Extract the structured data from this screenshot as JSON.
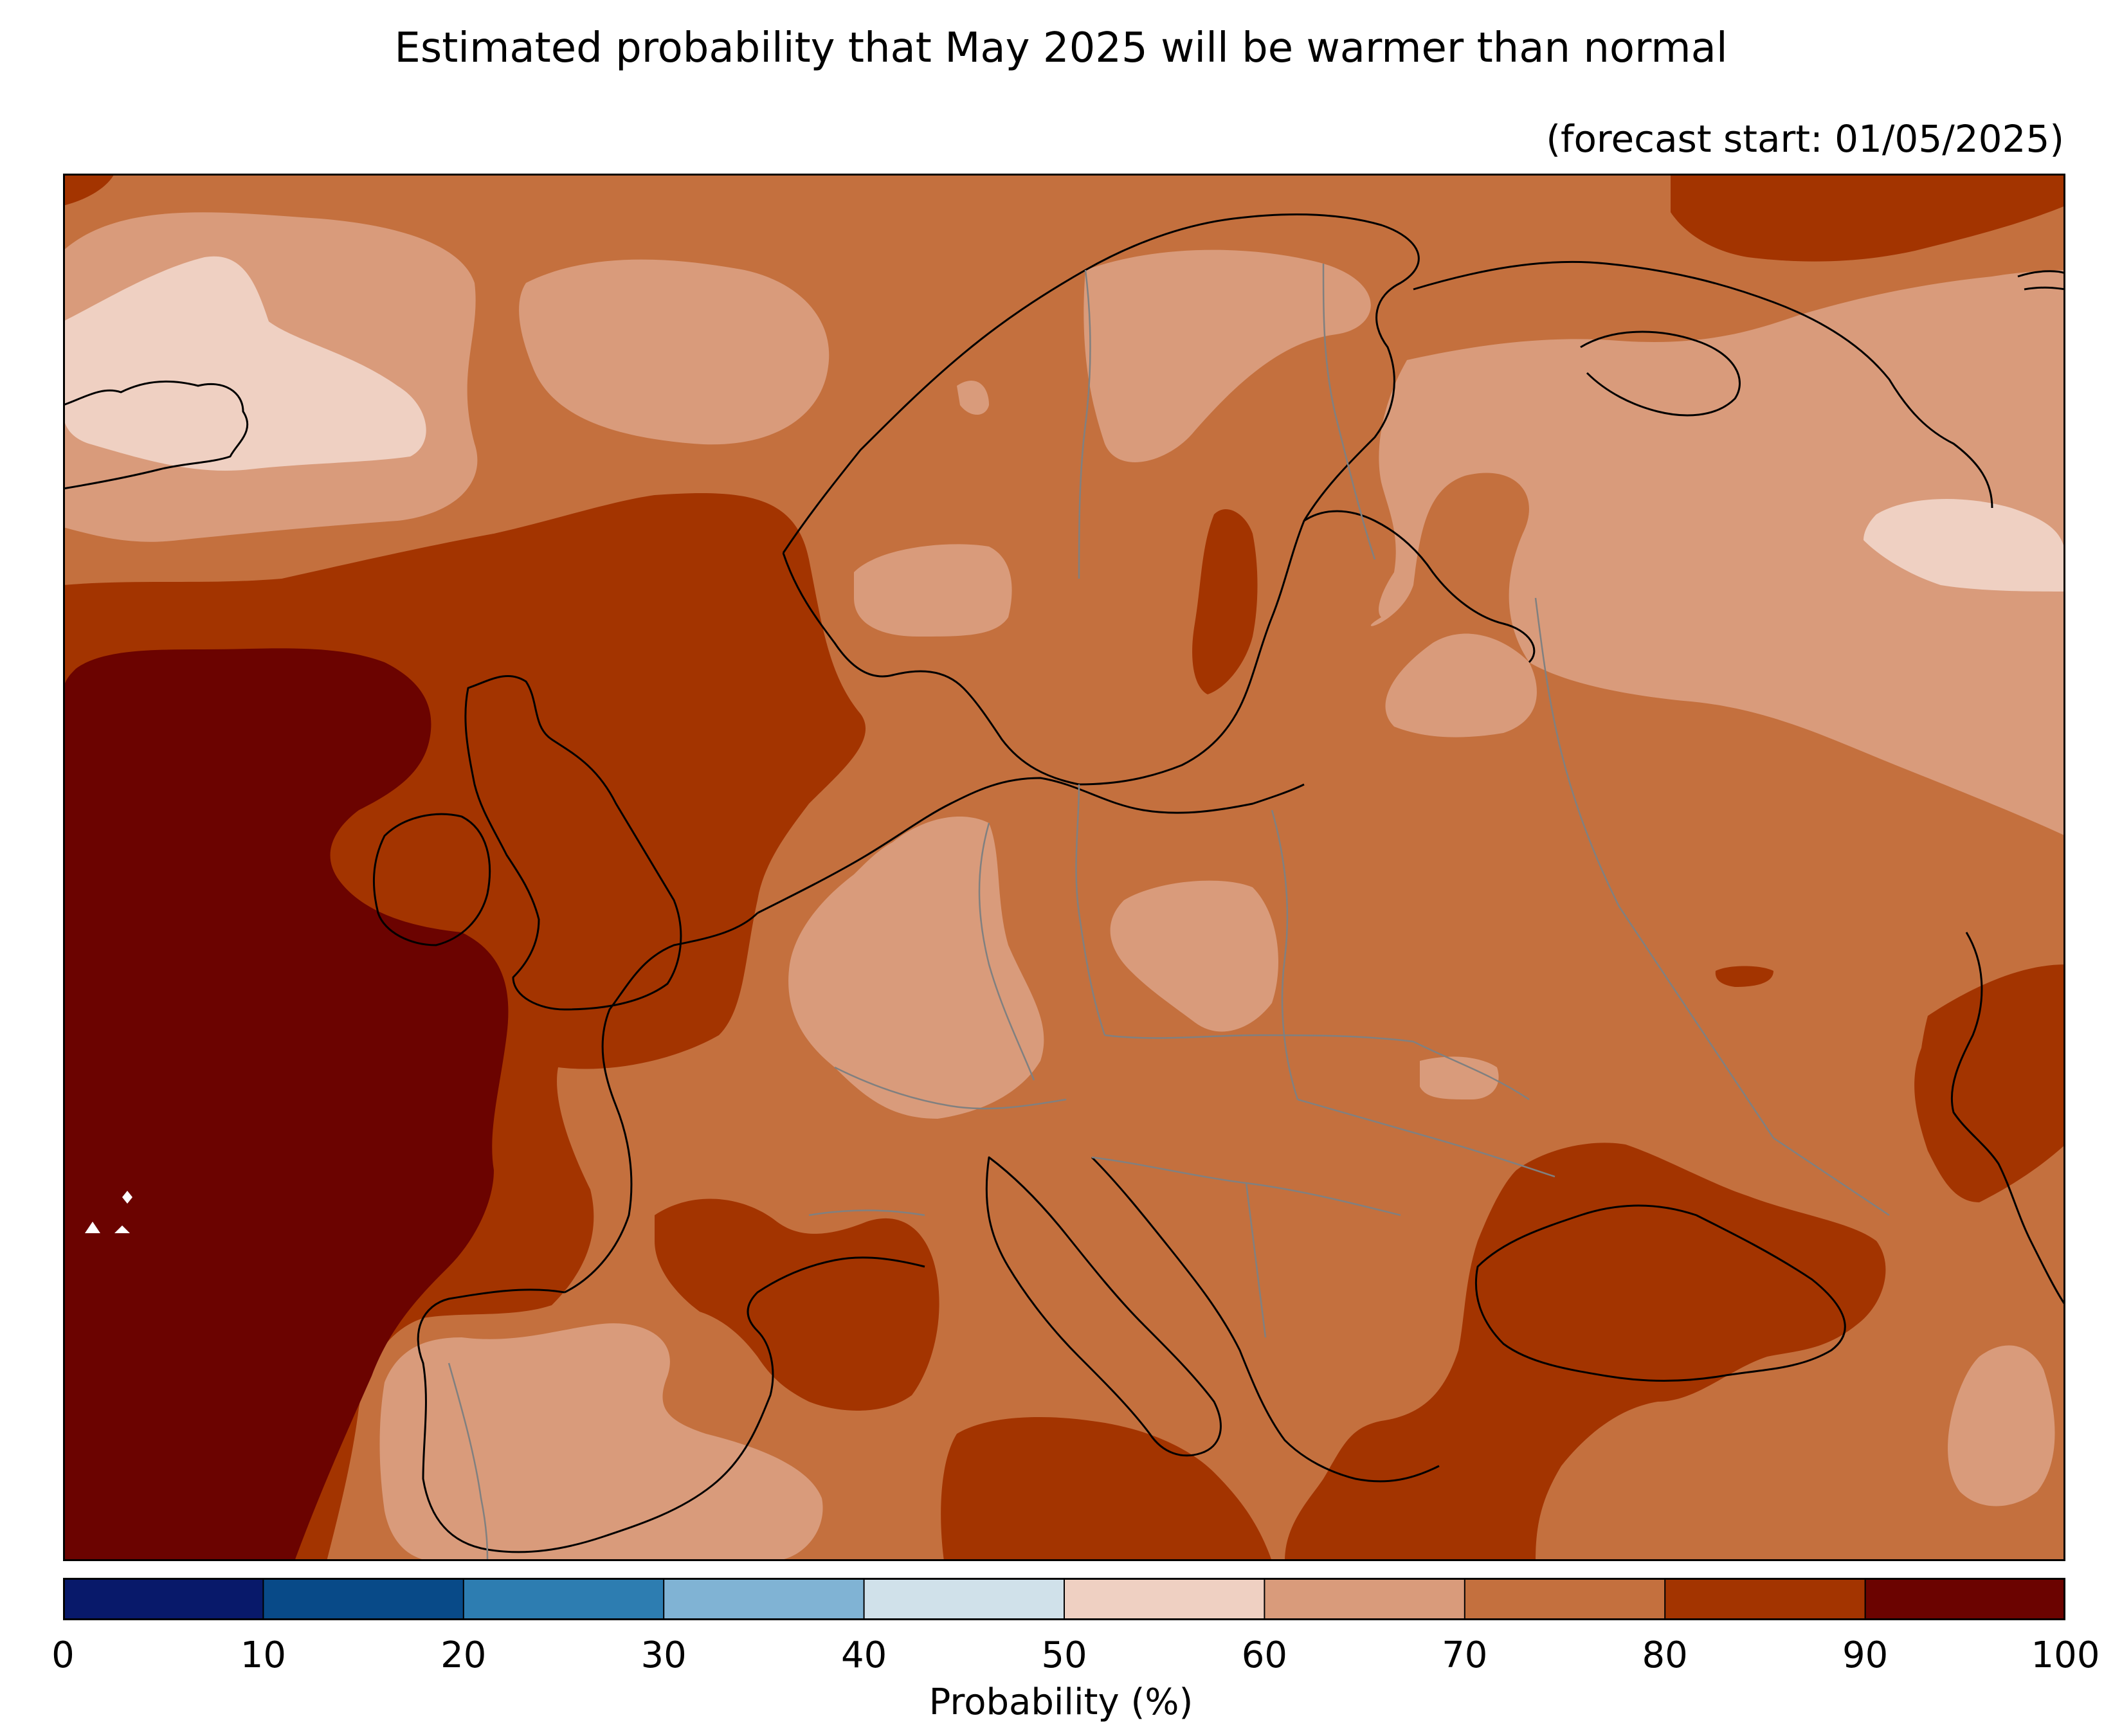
{
  "header": {
    "title": "Estimated probability that May 2025 will be warmer than normal",
    "subtitle": "(forecast start: 01/05/2025)"
  },
  "map": {
    "region": "Europe",
    "variable": "probability of above-normal temperature"
  },
  "colorbar": {
    "label": "Probability (%)",
    "ticks": [
      "0",
      "10",
      "20",
      "30",
      "40",
      "50",
      "60",
      "70",
      "80",
      "90",
      "100"
    ],
    "bins": [
      {
        "range": [
          0,
          10
        ],
        "color": "#08196a"
      },
      {
        "range": [
          10,
          20
        ],
        "color": "#084a88"
      },
      {
        "range": [
          20,
          30
        ],
        "color": "#2d7db1"
      },
      {
        "range": [
          30,
          40
        ],
        "color": "#80b3d4"
      },
      {
        "range": [
          40,
          50
        ],
        "color": "#d0e1ea"
      },
      {
        "range": [
          50,
          60
        ],
        "color": "#efd0c2"
      },
      {
        "range": [
          60,
          70
        ],
        "color": "#d99b7b"
      },
      {
        "range": [
          70,
          80
        ],
        "color": "#c4703e"
      },
      {
        "range": [
          80,
          90
        ],
        "color": "#a33400"
      },
      {
        "range": [
          90,
          100
        ],
        "color": "#6b0300"
      }
    ]
  },
  "colors": {
    "p50_60": "#efd0c2",
    "p60_70": "#d99b7b",
    "p70_80": "#c4703e",
    "p80_90": "#a33400",
    "p90_100": "#6b0300",
    "coast": "#000000",
    "border": "#808080"
  }
}
